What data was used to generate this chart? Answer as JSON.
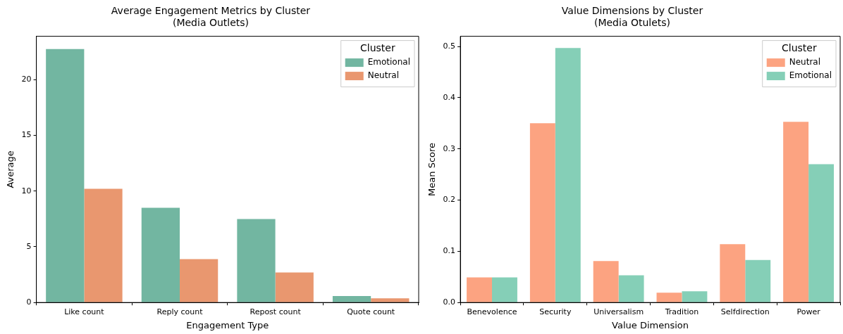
{
  "chart_data": [
    {
      "type": "bar",
      "title": "Average Engagement Metrics by Cluster\n(Media Outlets)",
      "xlabel": "Engagement Type",
      "ylabel": "Average",
      "legend_title": "Cluster",
      "legend": "top right",
      "grid": false,
      "categories": [
        "Like count",
        "Reply count",
        "Repost count",
        "Quote count"
      ],
      "ylim": [
        0,
        23.9
      ],
      "yticks": [
        0,
        5,
        10,
        15,
        20
      ],
      "series": [
        {
          "name": "Emotional",
          "color": "#72b6a1",
          "values": [
            22.75,
            8.5,
            7.5,
            0.58
          ]
        },
        {
          "name": "Neutral",
          "color": "#e9976f",
          "values": [
            10.2,
            3.9,
            2.7,
            0.38
          ]
        }
      ]
    },
    {
      "type": "bar",
      "title": "Value Dimensions by Cluster\n(Media Otulets)",
      "xlabel": "Value Dimension",
      "ylabel": "Mean Score",
      "legend_title": "Cluster",
      "legend": "top right",
      "grid": false,
      "categories": [
        "Benevolence",
        "Security",
        "Universalism",
        "Tradition",
        "Selfdirection",
        "Power"
      ],
      "ylim": [
        0,
        0.52
      ],
      "yticks": [
        {
          "value": 0,
          "label": "0.0"
        },
        0.1,
        0.2,
        0.3,
        0.4,
        0.5
      ],
      "series": [
        {
          "name": "Neutral",
          "color": "#fca381",
          "values": [
            0.049,
            0.35,
            0.081,
            0.019,
            0.114,
            0.353
          ]
        },
        {
          "name": "Emotional",
          "color": "#85cfb7",
          "values": [
            0.049,
            0.497,
            0.053,
            0.022,
            0.083,
            0.27
          ]
        }
      ]
    }
  ]
}
